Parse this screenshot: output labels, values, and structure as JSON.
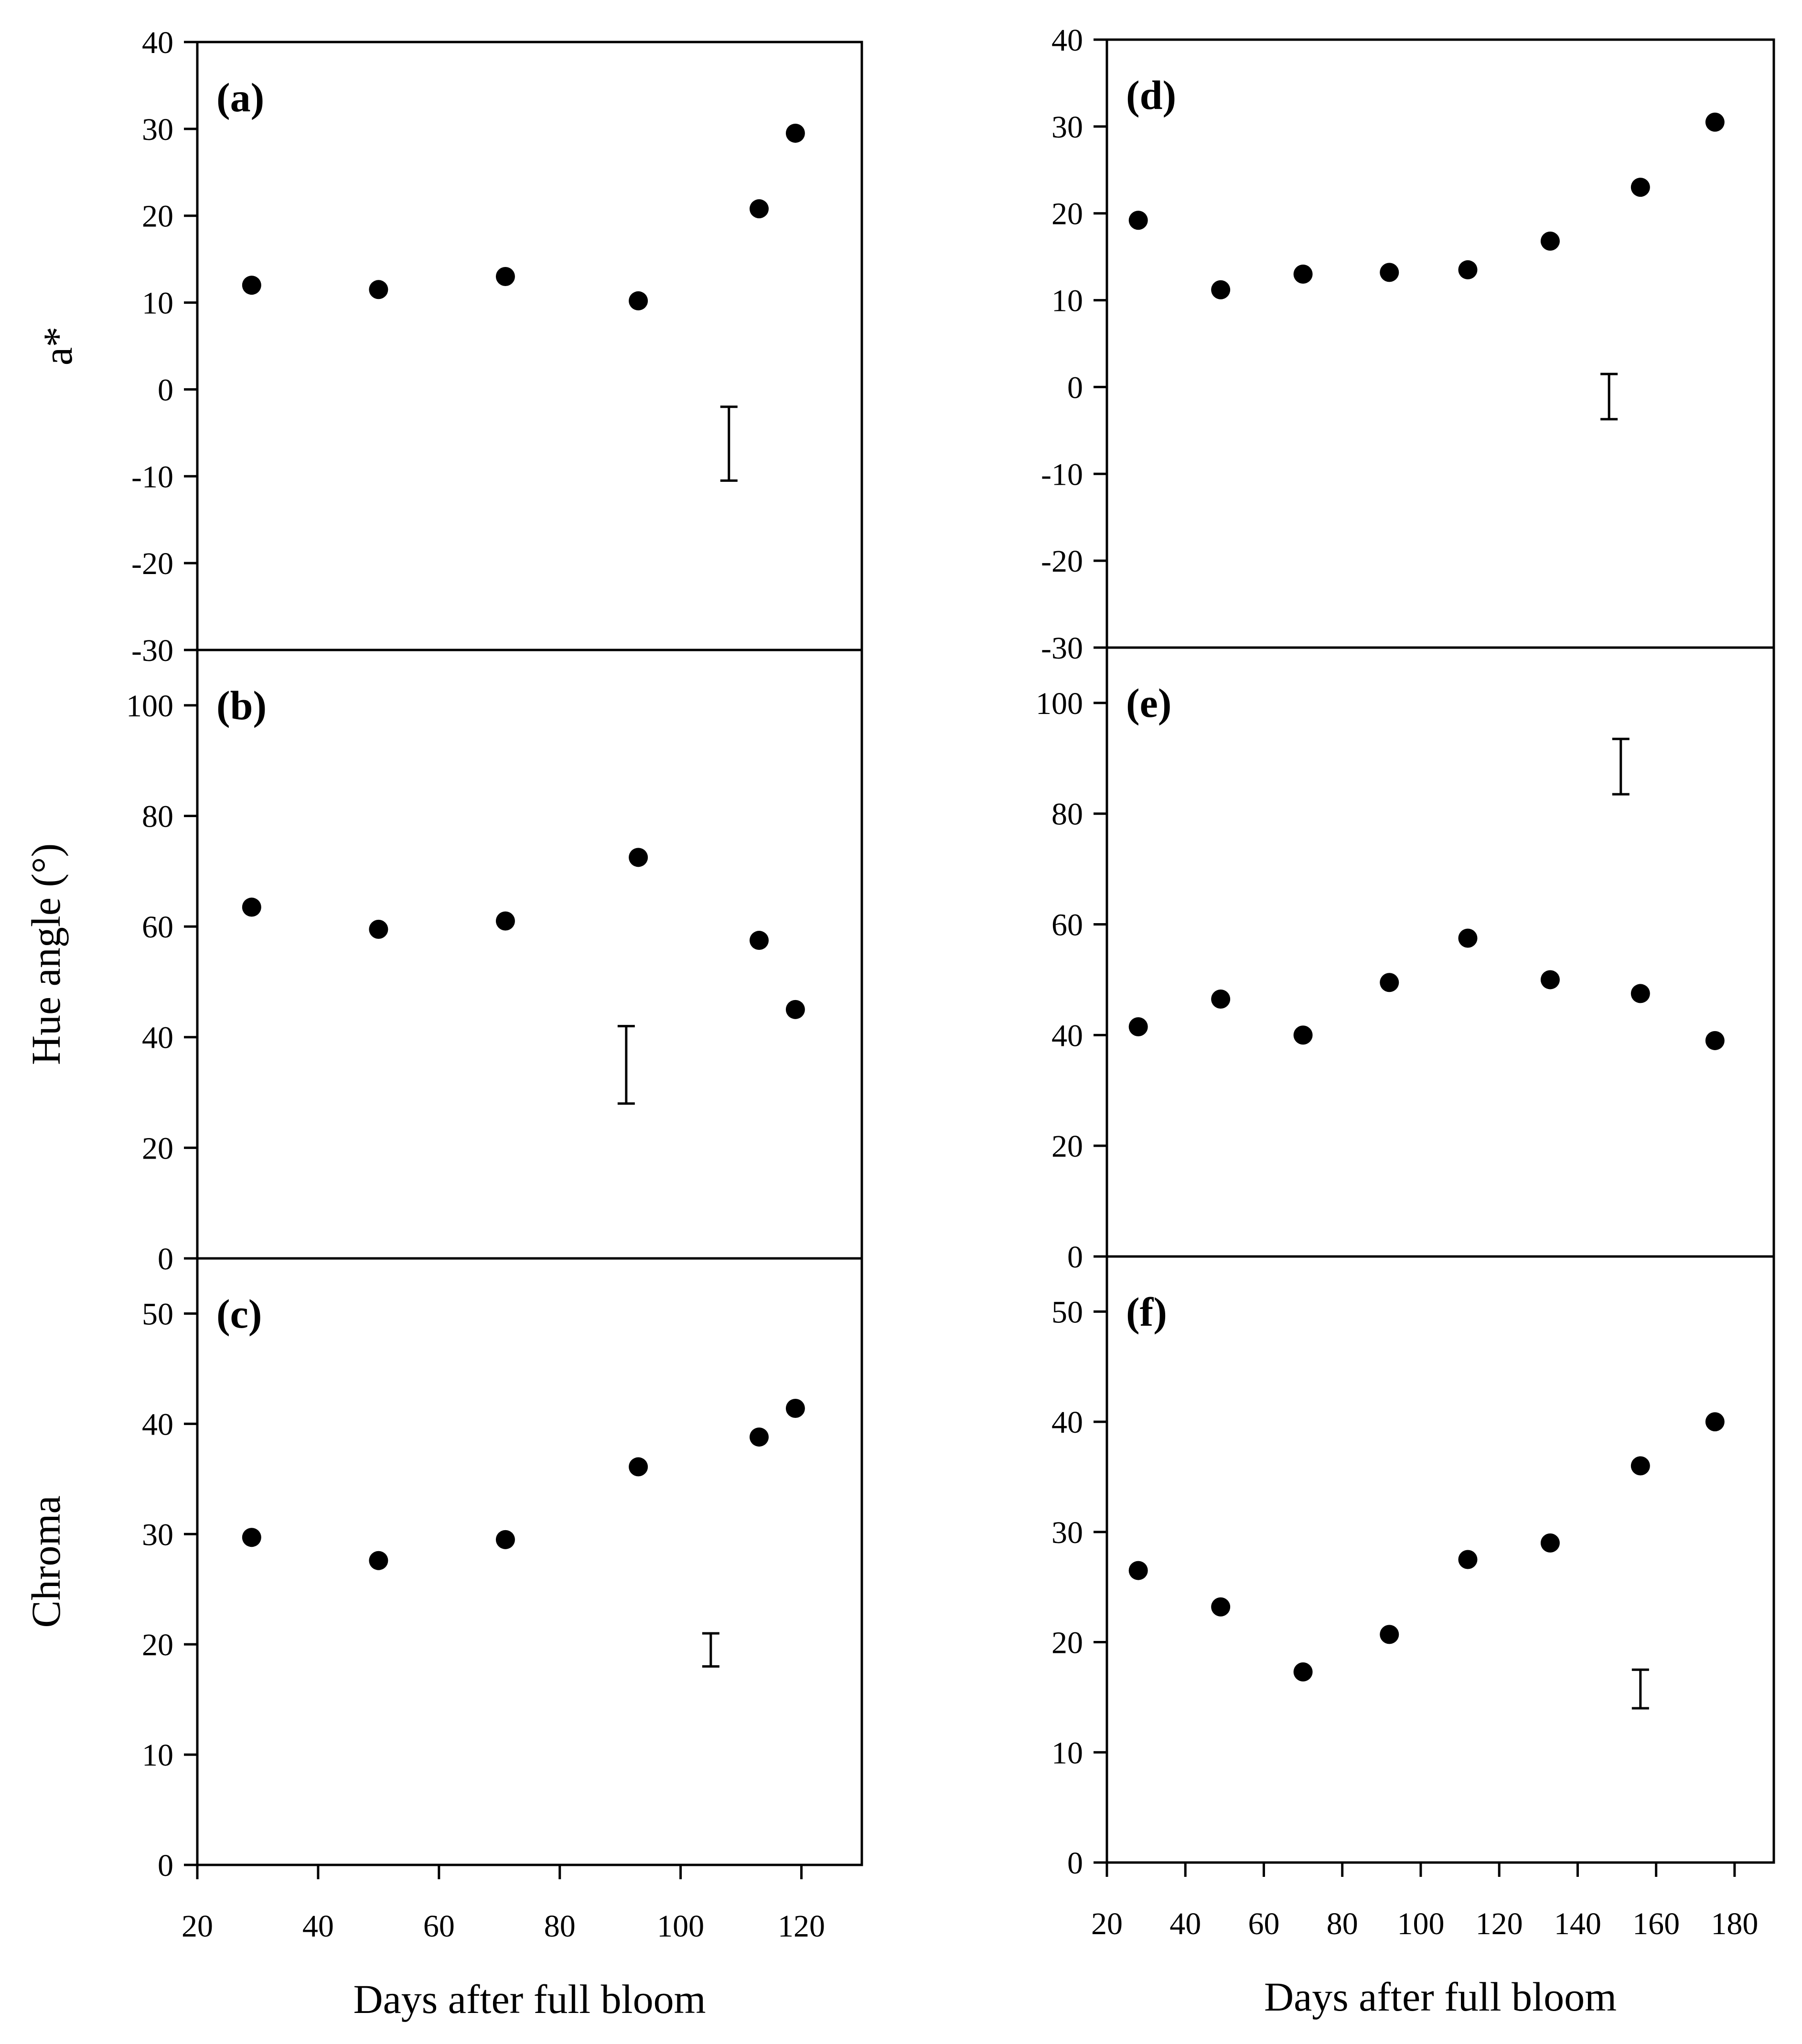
{
  "chart_data": [
    {
      "type": "scatter",
      "panel_label": "(a)",
      "ylabel": "a*",
      "xlabel": "",
      "ylim": [
        -30,
        40
      ],
      "yticks": [
        -30,
        -20,
        -10,
        0,
        10,
        20,
        30,
        40
      ],
      "xlim": [
        20,
        130
      ],
      "x": [
        29,
        50,
        71,
        93,
        113,
        119
      ],
      "y": [
        12,
        11.5,
        13,
        10.2,
        20.8,
        29.5
      ],
      "error_bar": {
        "x": 108,
        "low": -10.5,
        "high": -2
      }
    },
    {
      "type": "scatter",
      "panel_label": "(b)",
      "ylabel": "Hue angle (°)",
      "xlabel": "",
      "ylim": [
        0,
        110
      ],
      "yticks": [
        0,
        20,
        40,
        60,
        80,
        100
      ],
      "xlim": [
        20,
        130
      ],
      "x": [
        29,
        50,
        71,
        93,
        113,
        119
      ],
      "y": [
        63.5,
        59.5,
        61,
        72.5,
        57.5,
        45
      ],
      "error_bar": {
        "x": 91,
        "low": 28,
        "high": 42
      }
    },
    {
      "type": "scatter",
      "panel_label": "(c)",
      "ylabel": "Chroma",
      "xlabel": "Days after full bloom",
      "ylim": [
        0,
        55
      ],
      "yticks": [
        0,
        10,
        20,
        30,
        40,
        50
      ],
      "xlim": [
        20,
        130
      ],
      "xticks": [
        20,
        40,
        60,
        80,
        100,
        120
      ],
      "x": [
        29,
        50,
        71,
        93,
        113,
        119
      ],
      "y": [
        29.7,
        27.6,
        29.5,
        36.1,
        38.8,
        41.4
      ],
      "error_bar": {
        "x": 105,
        "low": 18,
        "high": 21
      }
    },
    {
      "type": "scatter",
      "panel_label": "(d)",
      "ylabel": "",
      "xlabel": "",
      "ylim": [
        -30,
        40
      ],
      "yticks": [
        -30,
        -20,
        -10,
        0,
        10,
        20,
        30,
        40
      ],
      "xlim": [
        20,
        190
      ],
      "x": [
        28,
        49,
        70,
        92,
        112,
        133,
        156,
        175
      ],
      "y": [
        19.2,
        11.2,
        13,
        13.2,
        13.5,
        16.8,
        23,
        30.5
      ],
      "error_bar": {
        "x": 148,
        "low": -3.7,
        "high": 1.5
      }
    },
    {
      "type": "scatter",
      "panel_label": "(e)",
      "ylabel": "",
      "xlabel": "",
      "ylim": [
        0,
        110
      ],
      "yticks": [
        0,
        20,
        40,
        60,
        80,
        100
      ],
      "xlim": [
        20,
        190
      ],
      "x": [
        28,
        49,
        70,
        92,
        112,
        133,
        156,
        175
      ],
      "y": [
        41.5,
        46.5,
        40,
        49.5,
        57.5,
        50,
        47.5,
        39
      ],
      "error_bar": {
        "x": 151,
        "low": 83.5,
        "high": 93.5
      }
    },
    {
      "type": "scatter",
      "panel_label": "(f)",
      "ylabel": "",
      "xlabel": "Days after full bloom",
      "ylim": [
        0,
        55
      ],
      "yticks": [
        0,
        10,
        20,
        30,
        40,
        50
      ],
      "xlim": [
        20,
        190
      ],
      "xticks": [
        20,
        40,
        60,
        80,
        100,
        120,
        140,
        160,
        180
      ],
      "x": [
        28,
        49,
        70,
        92,
        112,
        133,
        156,
        175
      ],
      "y": [
        26.5,
        23.2,
        17.3,
        20.7,
        27.5,
        29,
        36,
        40
      ],
      "error_bar": {
        "x": 156,
        "low": 14,
        "high": 17.5
      }
    }
  ]
}
